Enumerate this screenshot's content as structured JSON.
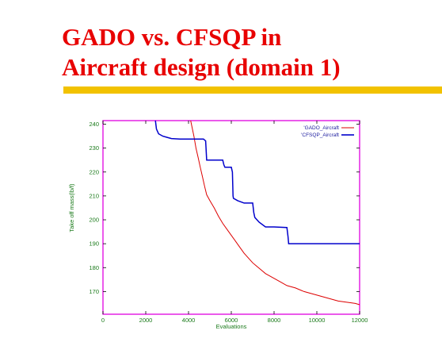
{
  "slide": {
    "title_line1": "GADO vs. CFSQP in",
    "title_line2": "Aircraft design (domain 1)"
  },
  "colors": {
    "title": "#e80000",
    "bar": "#f2c200",
    "frame": "#e000e0",
    "labels": "#1a7a1a",
    "legend_text": "#1a1a9e"
  },
  "chart_data": {
    "type": "line",
    "title": "",
    "xlabel": "Evaluations",
    "ylabel": "Take off mass(lb/f)",
    "xlim": [
      0,
      12000
    ],
    "ylim": [
      160.5,
      241.5
    ],
    "xticks": [
      0,
      2000,
      4000,
      6000,
      8000,
      10000,
      12000
    ],
    "yticks": [
      170,
      180,
      190,
      200,
      210,
      220,
      230,
      240
    ],
    "legend_position": "top-right",
    "grid": false,
    "series": [
      {
        "name": "'GADO_Aircraft",
        "color": "#dd0000",
        "points": [
          [
            4100,
            241.5
          ],
          [
            4250,
            235
          ],
          [
            4350,
            230
          ],
          [
            4450,
            226
          ],
          [
            4550,
            222
          ],
          [
            4650,
            218
          ],
          [
            4750,
            214
          ],
          [
            4850,
            210.5
          ],
          [
            5000,
            208
          ],
          [
            5200,
            205
          ],
          [
            5400,
            201.5
          ],
          [
            5600,
            198.5
          ],
          [
            5800,
            196
          ],
          [
            6000,
            193.5
          ],
          [
            6200,
            191
          ],
          [
            6400,
            188.5
          ],
          [
            6600,
            186
          ],
          [
            6800,
            184
          ],
          [
            7000,
            182
          ],
          [
            7200,
            180.5
          ],
          [
            7400,
            179
          ],
          [
            7600,
            177.5
          ],
          [
            7800,
            176.5
          ],
          [
            8000,
            175.5
          ],
          [
            8300,
            174
          ],
          [
            8600,
            172.5
          ],
          [
            9000,
            171.5
          ],
          [
            9400,
            170
          ],
          [
            9800,
            169
          ],
          [
            10200,
            168
          ],
          [
            10600,
            167
          ],
          [
            11000,
            166
          ],
          [
            11400,
            165.5
          ],
          [
            11800,
            165
          ],
          [
            12000,
            164.5
          ]
        ]
      },
      {
        "name": "'CFSQP_Aircraft",
        "color": "#0000cc",
        "points": [
          [
            2450,
            241.5
          ],
          [
            2500,
            238
          ],
          [
            2600,
            236
          ],
          [
            2800,
            235
          ],
          [
            3000,
            234.5
          ],
          [
            3200,
            234
          ],
          [
            3600,
            233.8
          ],
          [
            4000,
            233.8
          ],
          [
            4700,
            233.8
          ],
          [
            4800,
            233
          ],
          [
            4820,
            230
          ],
          [
            4850,
            225
          ],
          [
            5200,
            225
          ],
          [
            5600,
            225
          ],
          [
            5650,
            223
          ],
          [
            5700,
            222
          ],
          [
            6000,
            222
          ],
          [
            6050,
            220
          ],
          [
            6080,
            210
          ],
          [
            6100,
            209
          ],
          [
            6300,
            208
          ],
          [
            6600,
            207
          ],
          [
            7000,
            207
          ],
          [
            7050,
            203
          ],
          [
            7100,
            201
          ],
          [
            7300,
            199
          ],
          [
            7600,
            197
          ],
          [
            8000,
            197
          ],
          [
            8600,
            196.8
          ],
          [
            8650,
            193
          ],
          [
            8680,
            190
          ],
          [
            9500,
            190
          ],
          [
            10500,
            190
          ],
          [
            11500,
            190
          ],
          [
            12000,
            190
          ]
        ]
      }
    ]
  }
}
